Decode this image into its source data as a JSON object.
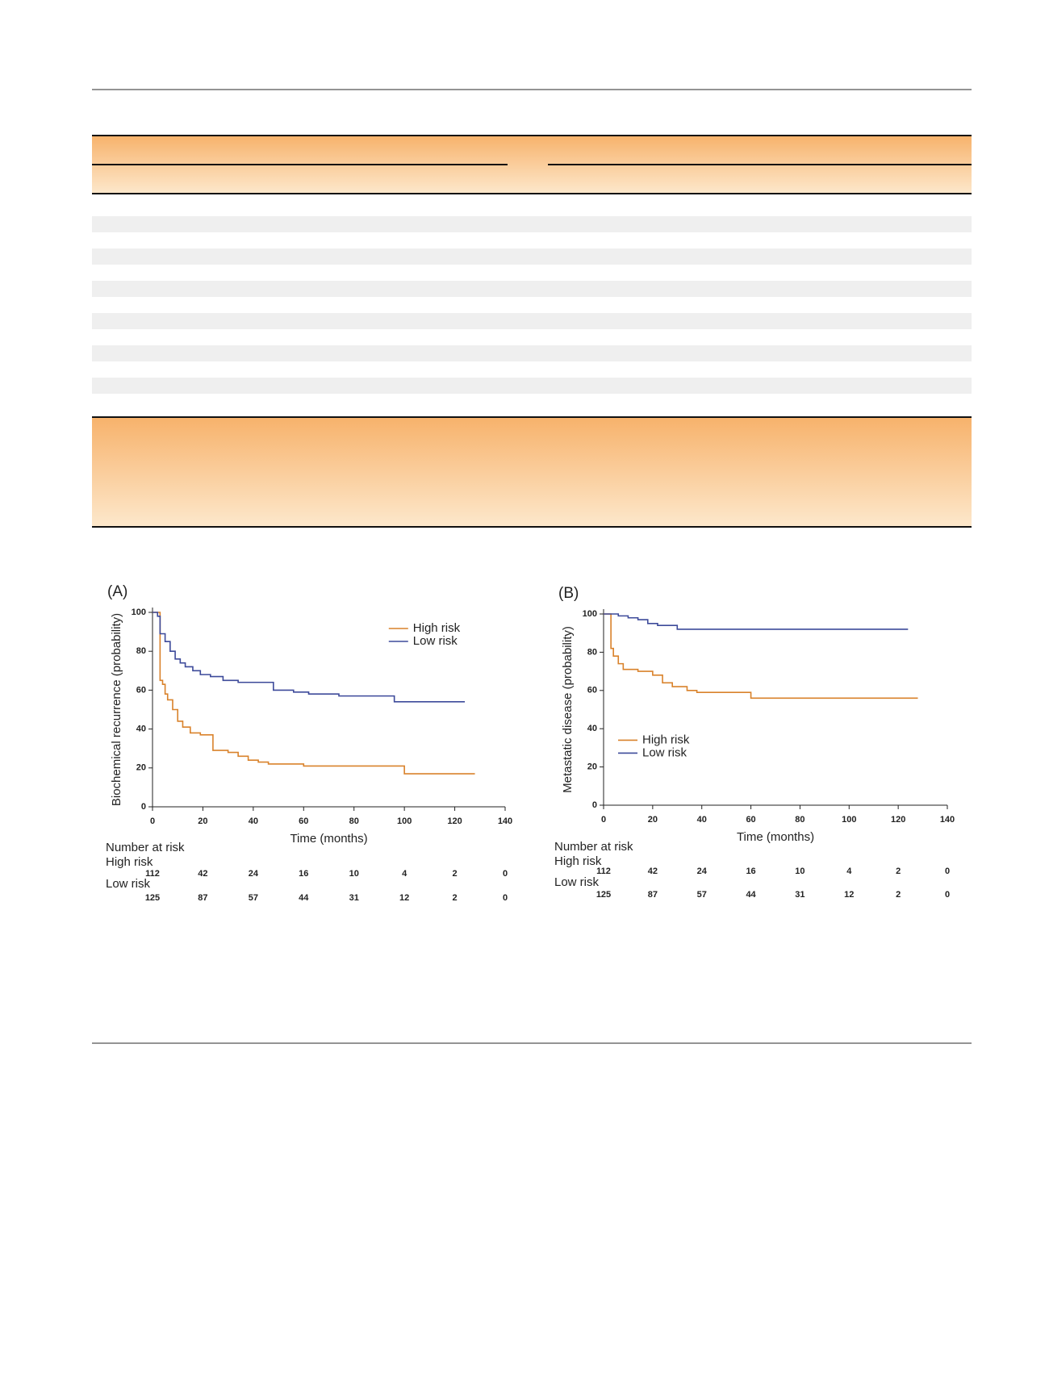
{
  "chart_data": [
    {
      "type": "line",
      "step": true,
      "panel_label": "(A)",
      "y_label": "Biochemical recurrence (probability)",
      "x_label": "Time (months)",
      "xlim": [
        0,
        140
      ],
      "ylim": [
        0,
        100
      ],
      "xticks": [
        0,
        20,
        40,
        60,
        80,
        100,
        120,
        140
      ],
      "yticks": [
        0,
        20,
        40,
        60,
        80,
        100
      ],
      "legend": "upper right",
      "series": [
        {
          "name": "High risk",
          "color": "#d9822b",
          "x": [
            0,
            3,
            4,
            5,
            6,
            8,
            10,
            12,
            15,
            19,
            24,
            30,
            34,
            38,
            42,
            46,
            60,
            100,
            128
          ],
          "values": [
            100,
            65,
            63,
            58,
            55,
            50,
            44,
            41,
            38,
            37,
            29,
            28,
            26,
            24,
            23,
            22,
            21,
            17,
            17
          ]
        },
        {
          "name": "Low risk",
          "color": "#3d4a9a",
          "x": [
            0,
            2,
            3,
            5,
            7,
            9,
            11,
            13,
            16,
            19,
            23,
            28,
            34,
            48,
            56,
            62,
            74,
            96,
            124
          ],
          "values": [
            100,
            98,
            89,
            85,
            80,
            76,
            74,
            72,
            70,
            68,
            67,
            65,
            64,
            60,
            59,
            58,
            57,
            54,
            54
          ]
        }
      ],
      "risk_table": {
        "title": "Number at risk",
        "rows": [
          {
            "name": "High risk",
            "values": [
              112,
              42,
              24,
              16,
              10,
              4,
              2,
              0
            ]
          },
          {
            "name": "Low risk",
            "values": [
              125,
              87,
              57,
              44,
              31,
              12,
              2,
              0
            ]
          }
        ]
      }
    },
    {
      "type": "line",
      "step": true,
      "panel_label": "(B)",
      "y_label": "Metastatic disease (probability)",
      "x_label": "Time (months)",
      "xlim": [
        0,
        140
      ],
      "ylim": [
        0,
        100
      ],
      "xticks": [
        0,
        20,
        40,
        60,
        80,
        100,
        120,
        140
      ],
      "yticks": [
        0,
        20,
        40,
        60,
        80,
        100
      ],
      "legend": "center left",
      "series": [
        {
          "name": "High risk",
          "color": "#d9822b",
          "x": [
            0,
            3,
            4,
            6,
            8,
            10,
            14,
            20,
            24,
            28,
            34,
            38,
            60,
            128
          ],
          "values": [
            100,
            82,
            78,
            74,
            71,
            71,
            70,
            68,
            64,
            62,
            60,
            59,
            56,
            56
          ]
        },
        {
          "name": "Low risk",
          "color": "#3d4a9a",
          "x": [
            0,
            6,
            10,
            14,
            18,
            22,
            30,
            124
          ],
          "values": [
            100,
            99,
            98,
            97,
            95,
            94,
            92,
            92
          ]
        }
      ],
      "risk_table": {
        "title": "Number at risk",
        "rows": [
          {
            "name": "High risk",
            "values": [
              112,
              42,
              24,
              16,
              10,
              4,
              2,
              0
            ]
          },
          {
            "name": "Low risk",
            "values": [
              125,
              87,
              57,
              44,
              31,
              12,
              2,
              0
            ]
          }
        ]
      }
    }
  ]
}
